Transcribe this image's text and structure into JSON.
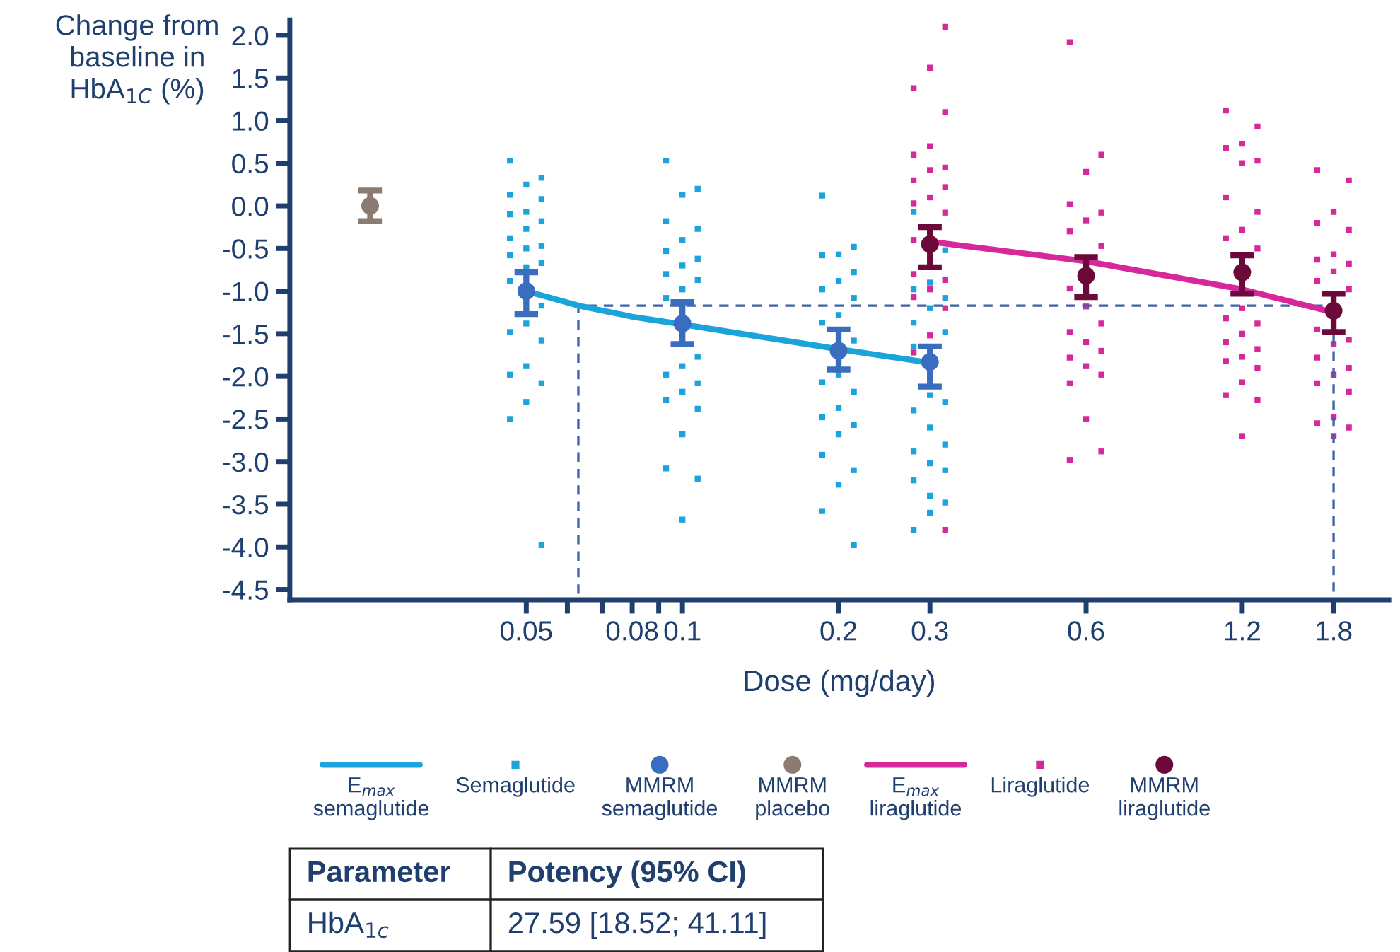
{
  "chart_data": {
    "type": "scatter",
    "xlabel": "Dose (mg/day)",
    "ylabel": "Change from baseline in HbA$_{1C}$ (%)",
    "log": "x",
    "xlim": [
      0.0175,
      2.3
    ],
    "xticks": [
      0.05,
      {
        "value": 0.06,
        "label": null
      },
      {
        "value": 0.07,
        "label": null
      },
      0.08,
      {
        "value": 0.09,
        "label": null
      },
      0.1,
      0.2,
      0.3,
      0.6,
      1.2,
      1.8
    ],
    "ylim": [
      -4.62,
      2.18
    ],
    "yticks": [
      {
        "value": 2,
        "label": "2.0"
      },
      {
        "value": 1.5,
        "label": "1.5"
      },
      {
        "value": 1,
        "label": "1.0"
      },
      {
        "value": 0.5,
        "label": "0.5"
      },
      {
        "value": 0,
        "label": "0.0"
      },
      {
        "value": -0.5,
        "label": "-0.5"
      },
      {
        "value": -1,
        "label": "-1.0"
      },
      {
        "value": -1.5,
        "label": "-1.5"
      },
      {
        "value": -2,
        "label": "-2.0"
      },
      {
        "value": -2.5,
        "label": "-2.5"
      },
      {
        "value": -3,
        "label": "-3.0"
      },
      {
        "value": -3.5,
        "label": "-3.5"
      },
      {
        "value": -4,
        "label": "-4.0"
      },
      {
        "value": -4.5,
        "label": "-4.5"
      }
    ],
    "grid": false,
    "legend": "bottom",
    "series": [
      {
        "type": "line",
        "line_style": "dashed",
        "color": "#3d63a8",
        "x": [
          0.063,
          0.063,
          1.8,
          1.8
        ],
        "values": [
          -4.55,
          -1.17,
          -1.17,
          -4.55
        ]
      },
      {
        "name": "E$_{max}$ semaglutide",
        "type": "line",
        "line_style": "solid",
        "color": "#1ba3dc",
        "x": [
          0.05,
          0.063,
          0.08,
          0.1,
          0.15,
          0.2,
          0.3
        ],
        "values": [
          -1.0,
          -1.17,
          -1.3,
          -1.39,
          -1.56,
          -1.68,
          -1.84
        ]
      },
      {
        "name": "Semaglutide",
        "marker": "square",
        "color": "#1ba3dc",
        "x": [
          0.0465,
          0.0535,
          0.05,
          0.0465,
          0.0535,
          0.05,
          0.0465,
          0.0535,
          0.05,
          0.0465,
          0.0535,
          0.05,
          0.0465,
          0.0535,
          0.05,
          0.0465,
          0.0535,
          0.05,
          0.0465,
          0.0535,
          0.05,
          0.0465,
          0.0535,
          0.05,
          0.0465,
          0.0535,
          0.093,
          0.107,
          0.1,
          0.093,
          0.107,
          0.1,
          0.093,
          0.107,
          0.1,
          0.093,
          0.107,
          0.1,
          0.093,
          0.107,
          0.1,
          0.093,
          0.107,
          0.1,
          0.093,
          0.107,
          0.1,
          0.093,
          0.107,
          0.1,
          0.186,
          0.214,
          0.2,
          0.186,
          0.214,
          0.2,
          0.186,
          0.214,
          0.2,
          0.186,
          0.214,
          0.2,
          0.186,
          0.214,
          0.2,
          0.186,
          0.214,
          0.2,
          0.186,
          0.214,
          0.2,
          0.186,
          0.214,
          0.279,
          0.321,
          0.3,
          0.279,
          0.321,
          0.3,
          0.279,
          0.321,
          0.279,
          0.3,
          0.321,
          0.279,
          0.3,
          0.321,
          0.279,
          0.3,
          0.321,
          0.279,
          0.3,
          0.321,
          0.3,
          0.279
        ],
        "values": [
          0.53,
          0.33,
          0.25,
          0.13,
          0.08,
          -0.07,
          -0.1,
          -0.18,
          -0.27,
          -0.38,
          -0.47,
          -0.5,
          -0.58,
          -0.67,
          -0.72,
          -0.88,
          -1.17,
          -1.38,
          -1.48,
          -1.58,
          -1.88,
          -1.98,
          -2.08,
          -2.3,
          -2.5,
          -3.98,
          0.53,
          0.2,
          0.13,
          -0.18,
          -0.27,
          -0.4,
          -0.53,
          -0.62,
          -0.7,
          -0.8,
          -0.87,
          -0.98,
          -1.08,
          -1.77,
          -1.88,
          -1.98,
          -2.08,
          -2.18,
          -2.28,
          -2.38,
          -2.68,
          -3.08,
          -3.2,
          -3.68,
          0.12,
          -0.48,
          -0.57,
          -0.58,
          -0.78,
          -0.88,
          -0.98,
          -1.08,
          -1.28,
          -1.37,
          -1.58,
          -1.98,
          -2.07,
          -2.18,
          -2.37,
          -2.48,
          -2.57,
          -2.68,
          -2.92,
          -3.1,
          -3.27,
          -3.58,
          -3.98,
          -0.07,
          -0.52,
          -0.9,
          -0.98,
          -1.08,
          -1.2,
          -1.37,
          -1.48,
          -1.65,
          -2.22,
          -2.3,
          -2.4,
          -2.6,
          -2.8,
          -2.88,
          -3.02,
          -3.1,
          -3.22,
          -3.4,
          -3.48,
          -3.6,
          -3.8
        ]
      },
      {
        "name": "MMRM semaglutide",
        "marker": "circle",
        "color": "#3a6cbf",
        "x": [
          0.05,
          0.1,
          0.2,
          0.3
        ],
        "values": [
          -1.0,
          -1.38,
          -1.7,
          -1.83
        ],
        "errors": [
          [
            -1.27,
            -0.78
          ],
          [
            -1.62,
            -1.13
          ],
          [
            -1.92,
            -1.45
          ],
          [
            -2.12,
            -1.65
          ]
        ]
      },
      {
        "name": "MMRM placebo",
        "marker": "circle",
        "color": "#8c7b70",
        "x": [
          0.025
        ],
        "values": [
          0.0
        ],
        "errors": [
          [
            -0.18,
            0.18
          ]
        ]
      },
      {
        "name": "E$_{max}$ liraglutide",
        "type": "line",
        "line_style": "solid",
        "color": "#d6289a",
        "x": [
          0.3,
          0.6,
          1.2,
          1.8
        ],
        "values": [
          -0.42,
          -0.65,
          -0.98,
          -1.25
        ]
      },
      {
        "name": "Liraglutide",
        "marker": "square",
        "color": "#d6289a",
        "x": [
          0.321,
          0.3,
          0.279,
          0.321,
          0.3,
          0.279,
          0.321,
          0.3,
          0.279,
          0.321,
          0.3,
          0.279,
          0.321,
          0.279,
          0.279,
          0.321,
          0.3,
          0.279,
          0.321,
          0.3,
          0.279,
          0.321,
          0.558,
          0.642,
          0.6,
          0.558,
          0.642,
          0.6,
          0.558,
          0.642,
          0.558,
          0.6,
          0.642,
          0.558,
          0.6,
          0.642,
          0.558,
          0.6,
          0.642,
          0.558,
          0.6,
          0.642,
          0.558,
          1.116,
          1.284,
          1.2,
          1.116,
          1.284,
          1.2,
          1.116,
          1.284,
          1.2,
          1.116,
          1.284,
          1.2,
          1.116,
          1.284,
          1.2,
          1.116,
          1.284,
          1.2,
          1.116,
          1.284,
          1.2,
          1.116,
          1.284,
          1.2,
          1.674,
          1.926,
          1.8,
          1.674,
          1.926,
          1.8,
          1.674,
          1.926,
          1.8,
          1.674,
          1.926,
          1.674,
          1.926,
          1.8,
          1.674,
          1.926,
          1.8,
          1.674,
          1.926,
          1.8,
          1.674,
          1.926,
          1.8
        ],
        "values": [
          2.1,
          1.62,
          1.38,
          1.1,
          0.7,
          0.6,
          0.45,
          0.42,
          0.3,
          0.22,
          0.1,
          0.03,
          -0.08,
          -0.4,
          -0.8,
          -0.87,
          -0.98,
          -1.07,
          -1.2,
          -1.52,
          -1.72,
          -3.8,
          1.92,
          0.6,
          0.4,
          0.02,
          -0.08,
          -0.17,
          -0.3,
          -0.47,
          -0.97,
          -1.18,
          -1.38,
          -1.48,
          -1.6,
          -1.7,
          -1.78,
          -1.88,
          -1.98,
          -2.08,
          -2.5,
          -2.88,
          -2.98,
          1.12,
          0.93,
          0.73,
          0.68,
          0.53,
          0.5,
          0.1,
          -0.07,
          -0.28,
          -0.38,
          -0.5,
          -1.2,
          -1.32,
          -1.38,
          -1.5,
          -1.6,
          -1.68,
          -1.77,
          -1.82,
          -1.9,
          -2.07,
          -2.22,
          -2.28,
          -2.7,
          0.42,
          0.3,
          -0.07,
          -0.2,
          -0.28,
          -0.57,
          -0.63,
          -0.68,
          -0.77,
          -0.88,
          -0.98,
          -1.45,
          -1.57,
          -1.62,
          -1.78,
          -1.9,
          -1.98,
          -2.08,
          -2.18,
          -2.48,
          -2.55,
          -2.6,
          -2.7
        ]
      },
      {
        "name": "MMRM liraglutide",
        "marker": "circle",
        "color": "#6b0a3a",
        "x": [
          0.3,
          0.6,
          1.2,
          1.8
        ],
        "values": [
          -0.45,
          -0.82,
          -0.78,
          -1.23
        ],
        "errors": [
          [
            -0.72,
            -0.25
          ],
          [
            -1.07,
            -0.6
          ],
          [
            -1.03,
            -0.58
          ],
          [
            -1.48,
            -1.03
          ]
        ]
      }
    ],
    "annotations": [
      "Parameter",
      "Potency (95% CI)",
      "HbA$_{1c}$",
      "27.59 [18.52; 41.11]"
    ]
  }
}
